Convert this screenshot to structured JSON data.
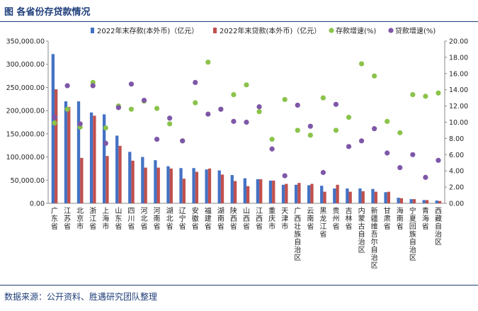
{
  "title": "图  各省份存贷款情况",
  "source": "数据来源：公开资料、胜遇研究团队整理",
  "chart_data": {
    "type": "bar",
    "categories": [
      "广东省",
      "江苏省",
      "北京市",
      "浙江省",
      "上海市",
      "山东省",
      "四川省",
      "河北省",
      "河南省",
      "湖北省",
      "辽宁省",
      "安徽省",
      "福建省",
      "湖南省",
      "陕西省",
      "山西省",
      "江西省",
      "重庆市",
      "天津市",
      "广西壮族自治区",
      "云南省",
      "黑龙江省",
      "贵州省",
      "吉林省",
      "内蒙古自治区",
      "新疆维吾尔自治区",
      "甘肃省",
      "海南省",
      "宁夏回族自治区",
      "青海省",
      "西藏自治区"
    ],
    "series": [
      {
        "name": "2022年末存款(本外币)（亿元）",
        "type": "bar",
        "axis": "left",
        "color": "#4472c4",
        "values": [
          322000,
          220000,
          220000,
          196000,
          192000,
          146000,
          111000,
          100000,
          93000,
          80000,
          76000,
          76000,
          73000,
          71000,
          61000,
          54000,
          52000,
          49000,
          40000,
          40000,
          39000,
          38000,
          32000,
          32000,
          32000,
          31000,
          24000,
          12000,
          9000,
          7000,
          6000
        ]
      },
      {
        "name": "2022年末贷款(本外币)（亿元）",
        "type": "bar",
        "axis": "left",
        "color": "#c0504d",
        "values": [
          246000,
          208000,
          98000,
          189000,
          102000,
          124000,
          92000,
          77000,
          77000,
          75000,
          53000,
          68000,
          75000,
          62000,
          48000,
          37000,
          52000,
          49000,
          42000,
          44000,
          42000,
          25000,
          40000,
          25000,
          26000,
          25000,
          25000,
          11000,
          9000,
          7000,
          5000
        ]
      },
      {
        "name": "存款增速(%)",
        "type": "scatter",
        "axis": "right",
        "color": "#8bc34a",
        "values": [
          9.9,
          11.6,
          9.4,
          14.9,
          9.3,
          12.0,
          11.6,
          12.6,
          11.7,
          9.8,
          7.7,
          12.4,
          17.4,
          11.6,
          13.4,
          14.6,
          11.3,
          7.9,
          12.8,
          9.0,
          8.4,
          13.0,
          9.0,
          10.6,
          17.2,
          15.7,
          10.1,
          8.7,
          13.4,
          13.2,
          13.6
        ]
      },
      {
        "name": "贷款增速(%)",
        "type": "scatter",
        "axis": "right",
        "color": "#7e57a8",
        "values": [
          10.6,
          14.5,
          9.8,
          14.5,
          7.4,
          11.8,
          14.7,
          12.7,
          7.9,
          10.5,
          7.7,
          14.9,
          11.0,
          11.6,
          10.1,
          10.0,
          11.9,
          6.7,
          3.4,
          12.1,
          9.5,
          3.8,
          12.2,
          7.0,
          7.7,
          9.2,
          6.2,
          4.4,
          6.0,
          3.2,
          5.3
        ]
      }
    ],
    "left_axis": {
      "ylim": [
        0,
        350000
      ],
      "ticks": [
        "0.00",
        "50,000.00",
        "100,000.00",
        "150,000.00",
        "200,000.00",
        "250,000.00",
        "300,000.00",
        "350,000.00"
      ]
    },
    "right_axis": {
      "ylim": [
        0,
        20
      ],
      "ticks": [
        "0.00",
        "2.00",
        "4.00",
        "6.00",
        "8.00",
        "10.00",
        "12.00",
        "14.00",
        "16.00",
        "18.00",
        "20.00"
      ]
    },
    "grid": true,
    "legend_position": "top"
  }
}
